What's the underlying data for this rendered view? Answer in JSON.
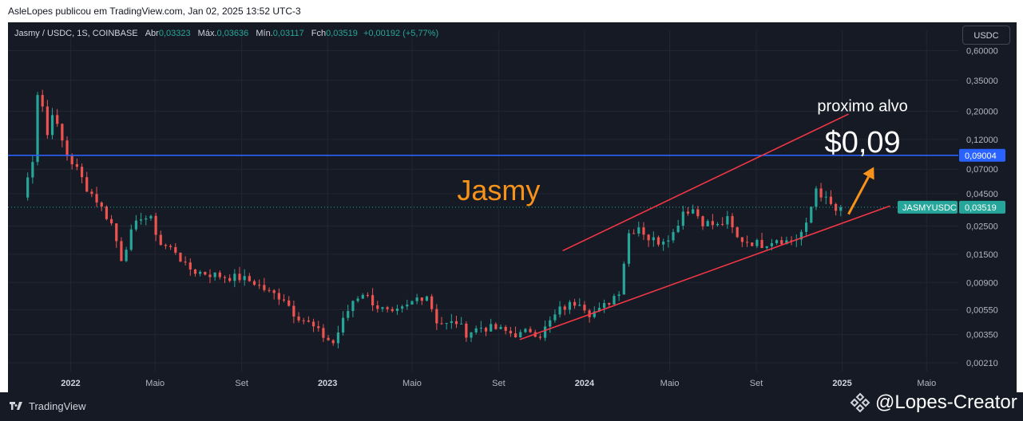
{
  "header": {
    "publisher_line": "AsleLopes publicou em TradingView.com, Jan 02, 2025 13:52 UTC-3"
  },
  "legend": {
    "symbol": "Jasmy / USDC, 1S, COINBASE",
    "open_label": "Abr",
    "open_value": "0,03323",
    "high_label": "Máx.",
    "high_value": "0,03636",
    "low_label": "Mín.",
    "low_value": "0,03117",
    "close_label": "Fch",
    "close_value": "0,03519",
    "change": "+0,00192 (+5,77%)"
  },
  "currency_button": "USDC",
  "footer": {
    "brand": "TradingView",
    "creator": "@Lopes-Creator"
  },
  "colors": {
    "up": "#26a69a",
    "down": "#ef5350",
    "hline": "#2962ff",
    "channel": "#f23645",
    "arrow": "#f7931a",
    "background": "#161a25"
  },
  "chart_data": {
    "type": "candlestick",
    "timeframe": "1S",
    "y_scale": "log",
    "y_ticks": [
      "0,60000",
      "0,35000",
      "0,20000",
      "0,12000",
      "0,07000",
      "0,04500",
      "0,02500",
      "0,01500",
      "0,00900",
      "0,00550",
      "0,00350",
      "0,00210"
    ],
    "y_tick_values": [
      0.6,
      0.35,
      0.2,
      0.12,
      0.07,
      0.045,
      0.025,
      0.015,
      0.009,
      0.0055,
      0.0035,
      0.0021
    ],
    "ylim": [
      0.0019,
      0.75
    ],
    "x_ticks": [
      {
        "label": "2022",
        "date": "2022-01-01",
        "bold": true
      },
      {
        "label": "Maio",
        "date": "2022-05-01"
      },
      {
        "label": "Set",
        "date": "2022-09-01"
      },
      {
        "label": "2023",
        "date": "2023-01-01",
        "bold": true
      },
      {
        "label": "Maio",
        "date": "2023-05-01"
      },
      {
        "label": "Set",
        "date": "2023-09-01"
      },
      {
        "label": "2024",
        "date": "2024-01-01",
        "bold": true
      },
      {
        "label": "Maio",
        "date": "2024-05-01"
      },
      {
        "label": "Set",
        "date": "2024-09-01"
      },
      {
        "label": "2025",
        "date": "2025-01-01",
        "bold": true
      },
      {
        "label": "Maio",
        "date": "2025-05-01"
      }
    ],
    "anchor_points": [
      [
        "2021-10-25",
        0.042
      ],
      [
        "2021-11-08",
        0.085
      ],
      [
        "2021-11-15",
        0.28
      ],
      [
        "2021-11-22",
        0.22
      ],
      [
        "2021-11-29",
        0.13
      ],
      [
        "2021-12-06",
        0.2
      ],
      [
        "2021-12-13",
        0.15
      ],
      [
        "2021-12-27",
        0.09
      ],
      [
        "2022-01-10",
        0.07
      ],
      [
        "2022-01-24",
        0.05
      ],
      [
        "2022-02-07",
        0.04
      ],
      [
        "2022-02-28",
        0.026
      ],
      [
        "2022-03-14",
        0.014
      ],
      [
        "2022-03-28",
        0.022
      ],
      [
        "2022-04-11",
        0.03
      ],
      [
        "2022-04-25",
        0.028
      ],
      [
        "2022-05-09",
        0.018
      ],
      [
        "2022-05-30",
        0.016
      ],
      [
        "2022-06-13",
        0.012
      ],
      [
        "2022-06-27",
        0.011
      ],
      [
        "2022-07-18",
        0.0105
      ],
      [
        "2022-08-08",
        0.01
      ],
      [
        "2022-08-29",
        0.0098
      ],
      [
        "2022-09-19",
        0.009
      ],
      [
        "2022-10-10",
        0.0075
      ],
      [
        "2022-10-31",
        0.0068
      ],
      [
        "2022-11-14",
        0.0052
      ],
      [
        "2022-12-05",
        0.0043
      ],
      [
        "2022-12-26",
        0.0034
      ],
      [
        "2023-01-09",
        0.003
      ],
      [
        "2023-01-23",
        0.0045
      ],
      [
        "2023-02-06",
        0.0065
      ],
      [
        "2023-02-20",
        0.0075
      ],
      [
        "2023-03-13",
        0.0058
      ],
      [
        "2023-04-03",
        0.005
      ],
      [
        "2023-04-24",
        0.0058
      ],
      [
        "2023-05-08",
        0.0068
      ],
      [
        "2023-05-22",
        0.0072
      ],
      [
        "2023-06-05",
        0.0045
      ],
      [
        "2023-06-19",
        0.0042
      ],
      [
        "2023-07-03",
        0.0044
      ],
      [
        "2023-07-17",
        0.0036
      ],
      [
        "2023-08-07",
        0.004
      ],
      [
        "2023-08-28",
        0.0039
      ],
      [
        "2023-09-18",
        0.0036
      ],
      [
        "2023-10-02",
        0.0035
      ],
      [
        "2023-10-16",
        0.0038
      ],
      [
        "2023-10-30",
        0.0035
      ],
      [
        "2023-11-13",
        0.0044
      ],
      [
        "2023-11-27",
        0.0055
      ],
      [
        "2023-12-11",
        0.006
      ],
      [
        "2023-12-25",
        0.0065
      ],
      [
        "2024-01-08",
        0.0052
      ],
      [
        "2024-01-22",
        0.0054
      ],
      [
        "2024-02-05",
        0.0064
      ],
      [
        "2024-02-19",
        0.0078
      ],
      [
        "2024-03-04",
        0.022
      ],
      [
        "2024-03-18",
        0.025
      ],
      [
        "2024-04-01",
        0.02
      ],
      [
        "2024-04-15",
        0.019
      ],
      [
        "2024-05-06",
        0.022
      ],
      [
        "2024-05-20",
        0.033
      ],
      [
        "2024-06-03",
        0.034
      ],
      [
        "2024-06-17",
        0.027
      ],
      [
        "2024-07-08",
        0.025
      ],
      [
        "2024-07-22",
        0.028
      ],
      [
        "2024-08-05",
        0.02
      ],
      [
        "2024-08-19",
        0.019
      ],
      [
        "2024-09-09",
        0.018
      ],
      [
        "2024-09-30",
        0.02
      ],
      [
        "2024-10-14",
        0.019
      ],
      [
        "2024-10-28",
        0.02
      ],
      [
        "2024-11-11",
        0.025
      ],
      [
        "2024-11-25",
        0.05
      ],
      [
        "2024-12-09",
        0.04
      ],
      [
        "2024-12-23",
        0.033
      ],
      [
        "2024-12-30",
        0.0352
      ]
    ],
    "last_close": 0.03519,
    "horizontal_lines": [
      {
        "value": 0.09004,
        "label": "0,09004"
      }
    ],
    "price_label": {
      "symbol": "JASMYUSDC",
      "value": "0,03519"
    },
    "trend_channel": {
      "upper": [
        [
          "2023-12-01",
          0.016
        ],
        [
          "2025-01-10",
          0.19
        ]
      ],
      "lower": [
        [
          "2023-10-01",
          0.0032
        ],
        [
          "2025-03-10",
          0.036
        ]
      ]
    },
    "annotations": [
      {
        "text": "Jasmy",
        "color": "#f7931a",
        "at": [
          "2023-09-01",
          0.04
        ]
      },
      {
        "text": "proximo alvo",
        "color": "#ffffff",
        "at": [
          "2025-01-30",
          0.2
        ]
      },
      {
        "text": "$0,09",
        "color": "#ffffff",
        "at": [
          "2025-01-30",
          0.095
        ]
      }
    ],
    "arrow": {
      "from": [
        "2025-01-10",
        0.031
      ],
      "to": [
        "2025-02-15",
        0.073
      ]
    }
  }
}
